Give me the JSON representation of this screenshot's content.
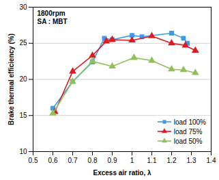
{
  "chart_data": {
    "type": "line",
    "annotations": [
      "1800rpm",
      "SA : MBT"
    ],
    "x_label": "Excess air ratio, λ",
    "y_label": "Brake thermal efficiency (%)",
    "xlim": [
      0.5,
      1.4
    ],
    "xticks": [
      0.5,
      0.6,
      0.7,
      0.8,
      0.9,
      1,
      1.1,
      1.2,
      1.3,
      1.4
    ],
    "ylim": [
      10,
      30
    ],
    "yticks": [
      10,
      15,
      20,
      25,
      30
    ],
    "grid": true,
    "legend": "bottom-right",
    "series": [
      {
        "name": "load 100%",
        "color": "#3d9be9",
        "marker": "square",
        "x": [
          0.6,
          0.7,
          0.8,
          0.86,
          0.9,
          1.0,
          1.05,
          1.2,
          1.26,
          1.28
        ],
        "values": [
          16.0,
          19.7,
          22.4,
          25.7,
          25.5,
          26.1,
          25.9,
          26.4,
          25.7,
          25.0
        ]
      },
      {
        "name": "load 75%",
        "color": "#e3191e",
        "marker": "triangle",
        "x": [
          0.61,
          0.7,
          0.8,
          0.87,
          0.9,
          1.0,
          1.1,
          1.2,
          1.27,
          1.32
        ],
        "values": [
          15.5,
          21.1,
          23.3,
          25.3,
          25.5,
          25.4,
          26.0,
          25.0,
          24.7,
          24.0
        ]
      },
      {
        "name": "load 50%",
        "color": "#92c15a",
        "marker": "triangle",
        "x": [
          0.6,
          0.7,
          0.8,
          0.9,
          1.01,
          1.1,
          1.2,
          1.26,
          1.32
        ],
        "values": [
          15.3,
          19.7,
          22.5,
          21.8,
          23.0,
          22.6,
          21.4,
          21.3,
          20.9
        ]
      }
    ]
  }
}
